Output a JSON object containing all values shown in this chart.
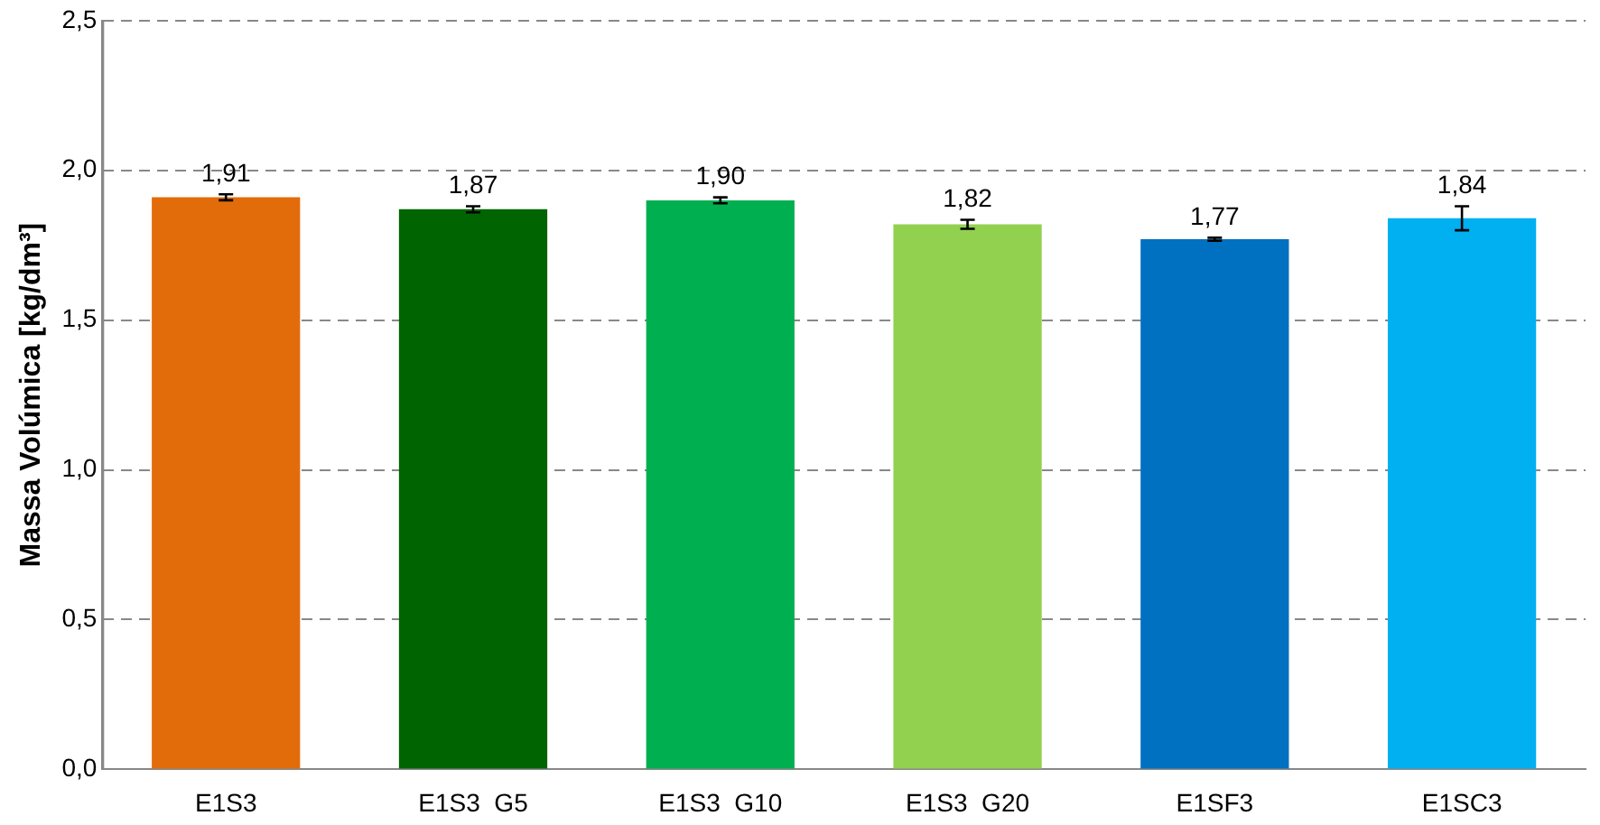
{
  "chart_data": {
    "type": "bar",
    "ylabel": "Massa Volúmica [kg/dm³]",
    "categories": [
      "E1S3",
      "E1S3  G5",
      "E1S3  G10",
      "E1S3  G20",
      "E1SF3",
      "E1SC3"
    ],
    "values": [
      1.91,
      1.87,
      1.9,
      1.82,
      1.77,
      1.84
    ],
    "colors": [
      "#e36c0a",
      "#006400",
      "#00b050",
      "#92d050",
      "#0070c0",
      "#00b0f0"
    ],
    "errors": [
      0.01,
      0.01,
      0.01,
      0.015,
      0.005,
      0.04
    ],
    "value_labels": [
      "1,91",
      "1,87",
      "1,90",
      "1,82",
      "1,77",
      "1,84"
    ],
    "ylim": [
      0,
      2.5
    ],
    "yticks": [
      {
        "value": 0,
        "label": "0,0"
      },
      {
        "value": 0.5,
        "label": "0,5"
      },
      {
        "value": 1,
        "label": "1,0"
      },
      {
        "value": 1.5,
        "label": "1,5"
      },
      {
        "value": 2,
        "label": "2,0"
      },
      {
        "value": 2.5,
        "label": "2,5"
      }
    ],
    "grid": "y"
  }
}
